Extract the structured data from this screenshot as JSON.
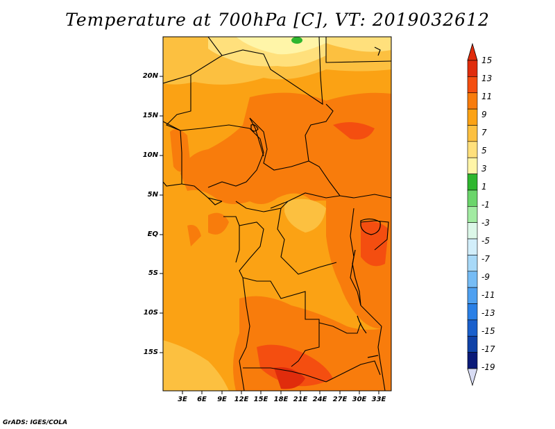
{
  "title": "Temperature at 700hPa [C], VT: 2019032612",
  "credit": "GrADS: IGES/COLA",
  "map": {
    "variable": "Temperature at 700hPa",
    "units": "C",
    "valid_time": "2019032612",
    "lat_labels": [
      "20N",
      "15N",
      "10N",
      "5N",
      "EQ",
      "5S",
      "10S",
      "15S"
    ],
    "lon_labels": [
      "3E",
      "6E",
      "9E",
      "12E",
      "15E",
      "18E",
      "21E",
      "24E",
      "27E",
      "30E",
      "33E"
    ]
  },
  "colorbar": {
    "labels": [
      "15",
      "13",
      "11",
      "9",
      "7",
      "5",
      "3",
      "1",
      "-1",
      "-3",
      "-5",
      "-7",
      "-9",
      "-11",
      "-13",
      "-15",
      "-17",
      "-19"
    ],
    "colors": [
      "#e02c0c",
      "#f44e10",
      "#f87c0c",
      "#fba214",
      "#fcc040",
      "#ffe07c",
      "#fff5a8",
      "#2eb62e",
      "#6bd56b",
      "#a2eba2",
      "#dcf7e8",
      "#d2eefa",
      "#a8d9f8",
      "#76bcf5",
      "#4ea0f0",
      "#2a80e6",
      "#1a60cc",
      "#1042a8",
      "#0a1a78"
    ],
    "top_arrow_color": "#e02c0c",
    "bottom_arrow_color": "#d8dcf4"
  }
}
